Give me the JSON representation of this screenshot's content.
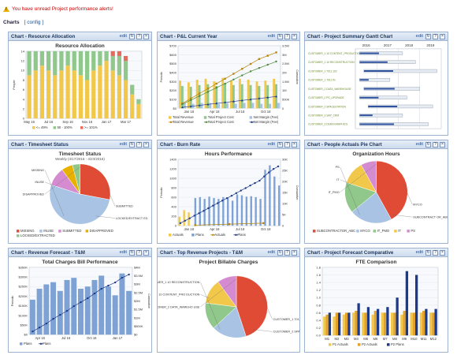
{
  "alert": {
    "text": "You have unread Project performance alerts!",
    "icon": "warning-icon"
  },
  "charts_header": {
    "label": "Charts",
    "config": "[ config ]"
  },
  "common": {
    "edit": "edit",
    "refresh_icon": "refresh-icon",
    "help_icon": "help-icon",
    "close_icon": "close-icon"
  },
  "colors": {
    "accent": "#1a4f9c",
    "alert": "#cc0000",
    "header_bg": "#cddbee",
    "border": "#9db3cf"
  },
  "pagelets": [
    {
      "id": "resource-allocation",
      "title": "Chart - Resource Allocation",
      "chart_data": {
        "type": "bar",
        "stacked": true,
        "title": "Resource Allocation",
        "ylabel": "People",
        "ylim": [
          0,
          14
        ],
        "yticks": [
          0,
          2,
          4,
          6,
          8,
          10,
          12,
          14
        ],
        "categories": [
          "May 16",
          "",
          "",
          "Jul 16",
          "",
          "",
          "Sep 16",
          "",
          "",
          "Nov 16",
          "",
          "",
          "Jan 17",
          "",
          "",
          "Mar 17",
          "",
          ""
        ],
        "xtick_labels": [
          "May 16",
          "Jul 16",
          "Sep 16",
          "Nov 16",
          "Jan 17",
          "Mar 17"
        ],
        "series": [
          {
            "name": "<= 49%",
            "color": "#f2c84b",
            "values": [
              9,
              10,
              11,
              10,
              9,
              10,
              11,
              10,
              9,
              8,
              10,
              11,
              12,
              10,
              9,
              8,
              5,
              3
            ]
          },
          {
            "name": "50 - 100%",
            "color": "#8fc88a",
            "values": [
              5,
              4,
              3,
              4,
              5,
              4,
              3,
              4,
              5,
              6,
              4,
              3,
              2,
              3,
              4,
              4,
              2,
              1
            ]
          },
          {
            "name": ">= 101%",
            "color": "#e86b5a",
            "values": [
              0,
              0,
              0,
              0,
              0,
              0,
              0,
              0,
              0,
              0,
              0,
              0,
              0,
              1,
              1,
              1,
              0,
              0
            ]
          }
        ]
      }
    },
    {
      "id": "pl-current-year",
      "title": "Chart - P&L Current Year",
      "chart_data": {
        "type": "line",
        "title": "",
        "ylabel": "Periodic",
        "y2label": "Cumulative",
        "ylim": [
          0,
          700
        ],
        "yticks_labels": [
          "$0",
          "$100",
          "$200",
          "$300",
          "$400",
          "$500",
          "$600",
          "$700"
        ],
        "y2ticks_labels": [
          "0",
          "500K",
          "1M",
          "1.5M",
          "2M",
          "2.5M",
          "3M",
          "3.5M"
        ],
        "categories": [
          "Jan 18",
          "",
          "",
          "Apr 18",
          "",
          "",
          "Jul 18",
          "",
          "",
          "Oct 18",
          "",
          ""
        ],
        "xtick_labels": [
          "Jan 18",
          "Apr 18",
          "Jul 18",
          "Oct 18"
        ],
        "bars": [
          {
            "name": "Total Revenue",
            "color": "#f2c84b",
            "values": [
              310,
              290,
              320,
              330,
              300,
              340,
              310,
              330,
              320,
              300,
              310,
              330
            ]
          },
          {
            "name": "Total Project Cost",
            "color": "#8fc88a",
            "values": [
              250,
              240,
              260,
              270,
              250,
              280,
              260,
              270,
              260,
              250,
              260,
              270
            ]
          },
          {
            "name": "Net Margin (Fee)",
            "color": "#a9c3e4",
            "values": [
              60,
              50,
              60,
              60,
              50,
              60,
              50,
              60,
              60,
              50,
              50,
              60
            ]
          }
        ],
        "lines": [
          {
            "name": "Total Revenue",
            "color": "#b8860b",
            "marker": "square",
            "values": [
              0.3,
              0.6,
              0.9,
              1.2,
              1.5,
              1.8,
              2.1,
              2.4,
              2.7,
              3.0,
              3.2,
              3.4
            ]
          },
          {
            "name": "Total Project Cost",
            "color": "#4e8a3a",
            "marker": "circle",
            "values": [
              0.25,
              0.5,
              0.75,
              1.0,
              1.25,
              1.5,
              1.75,
              2.0,
              2.25,
              2.45,
              2.65,
              2.85
            ]
          },
          {
            "name": "Net Margin (Fee)",
            "color": "#1d3a8a",
            "marker": "triangle",
            "values": [
              0.06,
              0.12,
              0.18,
              0.24,
              0.3,
              0.36,
              0.42,
              0.48,
              0.54,
              0.6,
              0.66,
              0.72
            ]
          }
        ]
      }
    },
    {
      "id": "project-gantt",
      "title": "Chart - Project Summary Gantt Chart",
      "chart_data": {
        "type": "gantt",
        "years": [
          "2016",
          "2017",
          "2018",
          "2019"
        ],
        "tasks": [
          {
            "name": "CUSTOMER_1 10 CONTENT_PRODUCTION",
            "start": 0.05,
            "end": 0.55,
            "progress": 0.45
          },
          {
            "name": "CUSTOMER_1 10 RECONSTRUCTION",
            "start": 0.05,
            "end": 0.7,
            "progress": 0.5
          },
          {
            "name": "CUSTOMER_1 7011.102",
            "start": 0.1,
            "end": 0.95,
            "progress": 0.4
          },
          {
            "name": "CUSTOMER_1 7011 IN",
            "start": 0.05,
            "end": 0.4,
            "progress": 0.3
          },
          {
            "name": "CUSTOMER_2 DATA_WAREHOUSE",
            "start": 0.1,
            "end": 0.75,
            "progress": 0.55
          },
          {
            "name": "CUSTOMER_2 PS_UPGRADE",
            "start": 0.05,
            "end": 0.6,
            "progress": 0.4
          },
          {
            "name": "CUSTOMER_2 SPACESTATION",
            "start": 0.15,
            "end": 0.9,
            "progress": 0.45
          },
          {
            "name": "CUSTOMER_3 SAP_CRM",
            "start": 0.05,
            "end": 0.55,
            "progress": 0.3
          },
          {
            "name": "CUSTOMER_3 DEMOGRAPHICS",
            "start": 0.05,
            "end": 0.85,
            "progress": 0.5
          }
        ]
      }
    },
    {
      "id": "timesheet-status",
      "title": "Chart - Timesheet Status",
      "chart_data": {
        "type": "pie",
        "title": "Timesheet Status",
        "subtitle": "Weekly (4/17/2016 - 4/23/2016)",
        "slices": [
          {
            "name": "MISSING",
            "value": 28,
            "color": "#e04b36"
          },
          {
            "name": "INUSE",
            "value": 52,
            "color": "#a9c3e4"
          },
          {
            "name": "SUBMITTED",
            "value": 10,
            "color": "#d58bd0"
          },
          {
            "name": "DISAPPROVED",
            "value": 6,
            "color": "#e8b100"
          },
          {
            "name": "LOCKED/EXTRACTED",
            "value": 4,
            "color": "#8fc88a"
          }
        ],
        "callouts": [
          "MISSING",
          "INUSE",
          "DISAPPROVED",
          "SUBMITTED",
          "LOCKED/EXTRACT ED"
        ]
      }
    },
    {
      "id": "burn-rate",
      "title": "Chart - Burn Rate",
      "chart_data": {
        "type": "bar",
        "title": "Hours Performance",
        "ylabel": "Periodic",
        "y2label": "Cumulative",
        "yticks_labels": [
          "0",
          "200",
          "400",
          "600",
          "800",
          "1000",
          "1200",
          "1400"
        ],
        "y2ticks_labels": [
          "0",
          "5K",
          "10K",
          "15K",
          "20K",
          "25K",
          "30K"
        ],
        "xtick_labels": [
          "Jan 18",
          "Apr 18",
          "Jul 18",
          "Oct 18"
        ],
        "bars": [
          {
            "name": "Actuals",
            "color": "#f2c84b",
            "values": [
              200,
              350,
              300,
              0,
              0,
              0,
              0,
              0,
              0,
              0,
              0,
              0,
              0,
              0,
              0,
              0,
              0,
              0,
              0,
              0,
              0,
              0
            ]
          },
          {
            "name": "Plans",
            "color": "#7fa2d4",
            "values": [
              0,
              0,
              0,
              620,
              640,
              600,
              650,
              620,
              600,
              640,
              620,
              560,
              700,
              680,
              650,
              660,
              640,
              600,
              1250,
              1350,
              1100,
              900
            ]
          }
        ],
        "lines": [
          {
            "name": "Actuals",
            "color": "#b8860b",
            "marker": "square",
            "values": [
              0.3,
              0.8,
              1.3
            ]
          },
          {
            "name": "Plans",
            "color": "#1d3a8a",
            "marker": "circle",
            "values": [
              1.3,
              2.5,
              3.7,
              5.0,
              6.2,
              7.4,
              8.7,
              10,
              11.2,
              12.5,
              13.7,
              14.9,
              16.2,
              17.5,
              18.7,
              20,
              21.2,
              22.4,
              24.5,
              26.5,
              28.2,
              29.5
            ]
          }
        ]
      }
    },
    {
      "id": "people-actuals",
      "title": "Chart - People Actuals Pie Chart",
      "chart_data": {
        "type": "pie",
        "title": "Organization Hours",
        "slices": [
          {
            "name": "SUBCONTRACTOR_ABC",
            "value": 42,
            "color": "#e04b36"
          },
          {
            "name": "MYCO",
            "value": 22,
            "color": "#a9c3e4"
          },
          {
            "name": "IT_PMO",
            "value": 16,
            "color": "#8fc88a"
          },
          {
            "name": "IT",
            "value": 12,
            "color": "#f2c84b"
          },
          {
            "name": "PS",
            "value": 8,
            "color": "#d58bd0"
          }
        ],
        "callouts": [
          "PS",
          "IT",
          "IT_PMO",
          "MYCO",
          "SUBCONTRACT OR_ABC"
        ]
      }
    },
    {
      "id": "revenue-forecast",
      "title": "Chart - Revenue Forecast - T&M",
      "chart_data": {
        "type": "bar",
        "title": "Total Charges Bill Performance",
        "ylabel": "Periodic",
        "y2label": "Cumulative",
        "yticks_labels": [
          "$0",
          "$50K",
          "$100K",
          "$150K",
          "$200K",
          "$250K",
          "$300K",
          "$350K"
        ],
        "y2ticks_labels": [
          "$0",
          "$500K",
          "$1M",
          "$1.5M",
          "$2M",
          "$2.5M",
          "$3M",
          "$3.5M",
          "$4M"
        ],
        "xtick_labels": [
          "Apr 16",
          "Jul 16",
          "Oct 16",
          "Jan 17"
        ],
        "bars": [
          {
            "name": "Plans",
            "color": "#7fa2d4",
            "values": [
              160,
              210,
              230,
              240,
              200,
              250,
              260,
              210,
              220,
              250,
              270,
              220,
              180,
              280,
              200
            ]
          }
        ],
        "lines": [
          {
            "name": "Plans",
            "color": "#1d3a8a",
            "marker": "circle",
            "values": [
              0.2,
              0.45,
              0.7,
              1.0,
              1.25,
              1.5,
              1.8,
              2.05,
              2.3,
              2.6,
              2.9,
              3.1,
              3.3,
              3.6,
              3.8
            ]
          }
        ]
      }
    },
    {
      "id": "top-revenue-projects",
      "title": "Chart - Top Revenue Projects - T&M",
      "chart_data": {
        "type": "pie",
        "title": "Project Billable Charges",
        "slices": [
          {
            "name": "CUSTOMER_2 SPACESTATION",
            "value": 45,
            "color": "#e04b36"
          },
          {
            "name": "CUSTOMER_1 7011.102",
            "value": 18,
            "color": "#a9c3e4"
          },
          {
            "name": "CUSTOMER_2 DATA_WAREHOUSE",
            "value": 14,
            "color": "#8fc88a"
          },
          {
            "name": "CUSTOMER_1 10 CONTENT_PRODUCTION",
            "value": 13,
            "color": "#f2c84b"
          },
          {
            "name": "CUSTOMER_1 10 RECONSTRUCTION",
            "value": 10,
            "color": "#d58bd0"
          }
        ],
        "callouts": [
          "CUSTOMER_1 10 RECONSTRUCTION",
          "CUSTOMER_1 10 CONTENT_PRO DUCTION",
          "CUSTOMER_2 DATA_WAREHO USE",
          "CUSTOMER_1 7011.102",
          "CUSTOMER_2 SPACESTATION"
        ]
      }
    },
    {
      "id": "project-forecast",
      "title": "Chart - Project Forecast Comparative",
      "chart_data": {
        "type": "bar",
        "title": "FTE Comparison",
        "ylim": [
          0,
          1.8
        ],
        "categories": [
          "M1",
          "M2",
          "M3",
          "M4",
          "M5",
          "M6",
          "M7",
          "M8",
          "M9",
          "M10",
          "M11",
          "M12"
        ],
        "xtick_labels": [
          "M1",
          "M2",
          "M3",
          "M4",
          "M5",
          "M6",
          "M7",
          "M8",
          "M9",
          "M10",
          "M11",
          "M12"
        ],
        "series": [
          {
            "name": "P1 Actuals",
            "color": "#f2c84b",
            "values": [
              0.5,
              0.5,
              0.55,
              0.6,
              0.6,
              0.55,
              0.6,
              0.6,
              0.55,
              0.6,
              0.6,
              0.6
            ]
          },
          {
            "name": "P2 Actuals",
            "color": "#e3a22b",
            "values": [
              0.55,
              0.6,
              0.6,
              0.65,
              0.6,
              0.65,
              0.6,
              0.6,
              0.65,
              0.6,
              0.65,
              0.6
            ]
          },
          {
            "name": "P2 Plans",
            "color": "#1d3a8a",
            "values": [
              0.6,
              0.6,
              0.6,
              0.85,
              0.75,
              0.7,
              0.75,
              1.0,
              1.7,
              1.6,
              0.7,
              0.7
            ]
          }
        ]
      }
    }
  ]
}
